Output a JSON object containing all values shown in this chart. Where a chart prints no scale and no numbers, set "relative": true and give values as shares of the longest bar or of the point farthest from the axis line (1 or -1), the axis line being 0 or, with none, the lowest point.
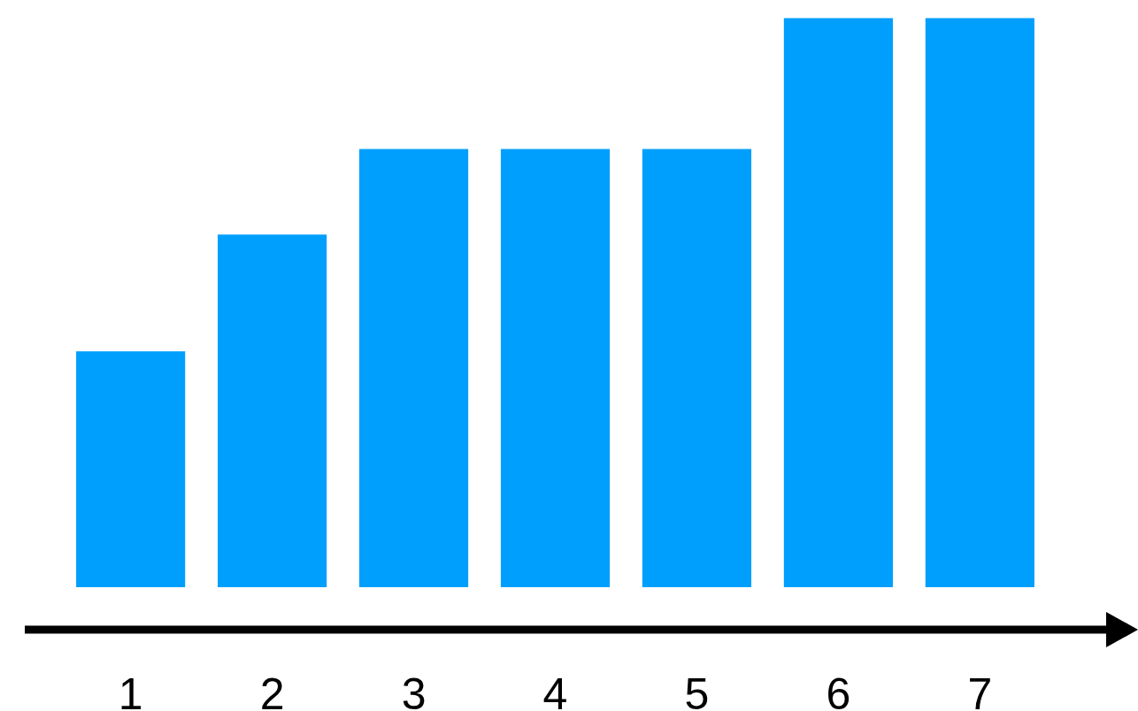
{
  "chart_data": {
    "type": "bar",
    "relative": true,
    "categories": [
      "1",
      "2",
      "3",
      "4",
      "5",
      "6",
      "7"
    ],
    "values": [
      0.415,
      0.62,
      0.77,
      0.77,
      0.77,
      1,
      1
    ],
    "color": "#009ffd"
  }
}
